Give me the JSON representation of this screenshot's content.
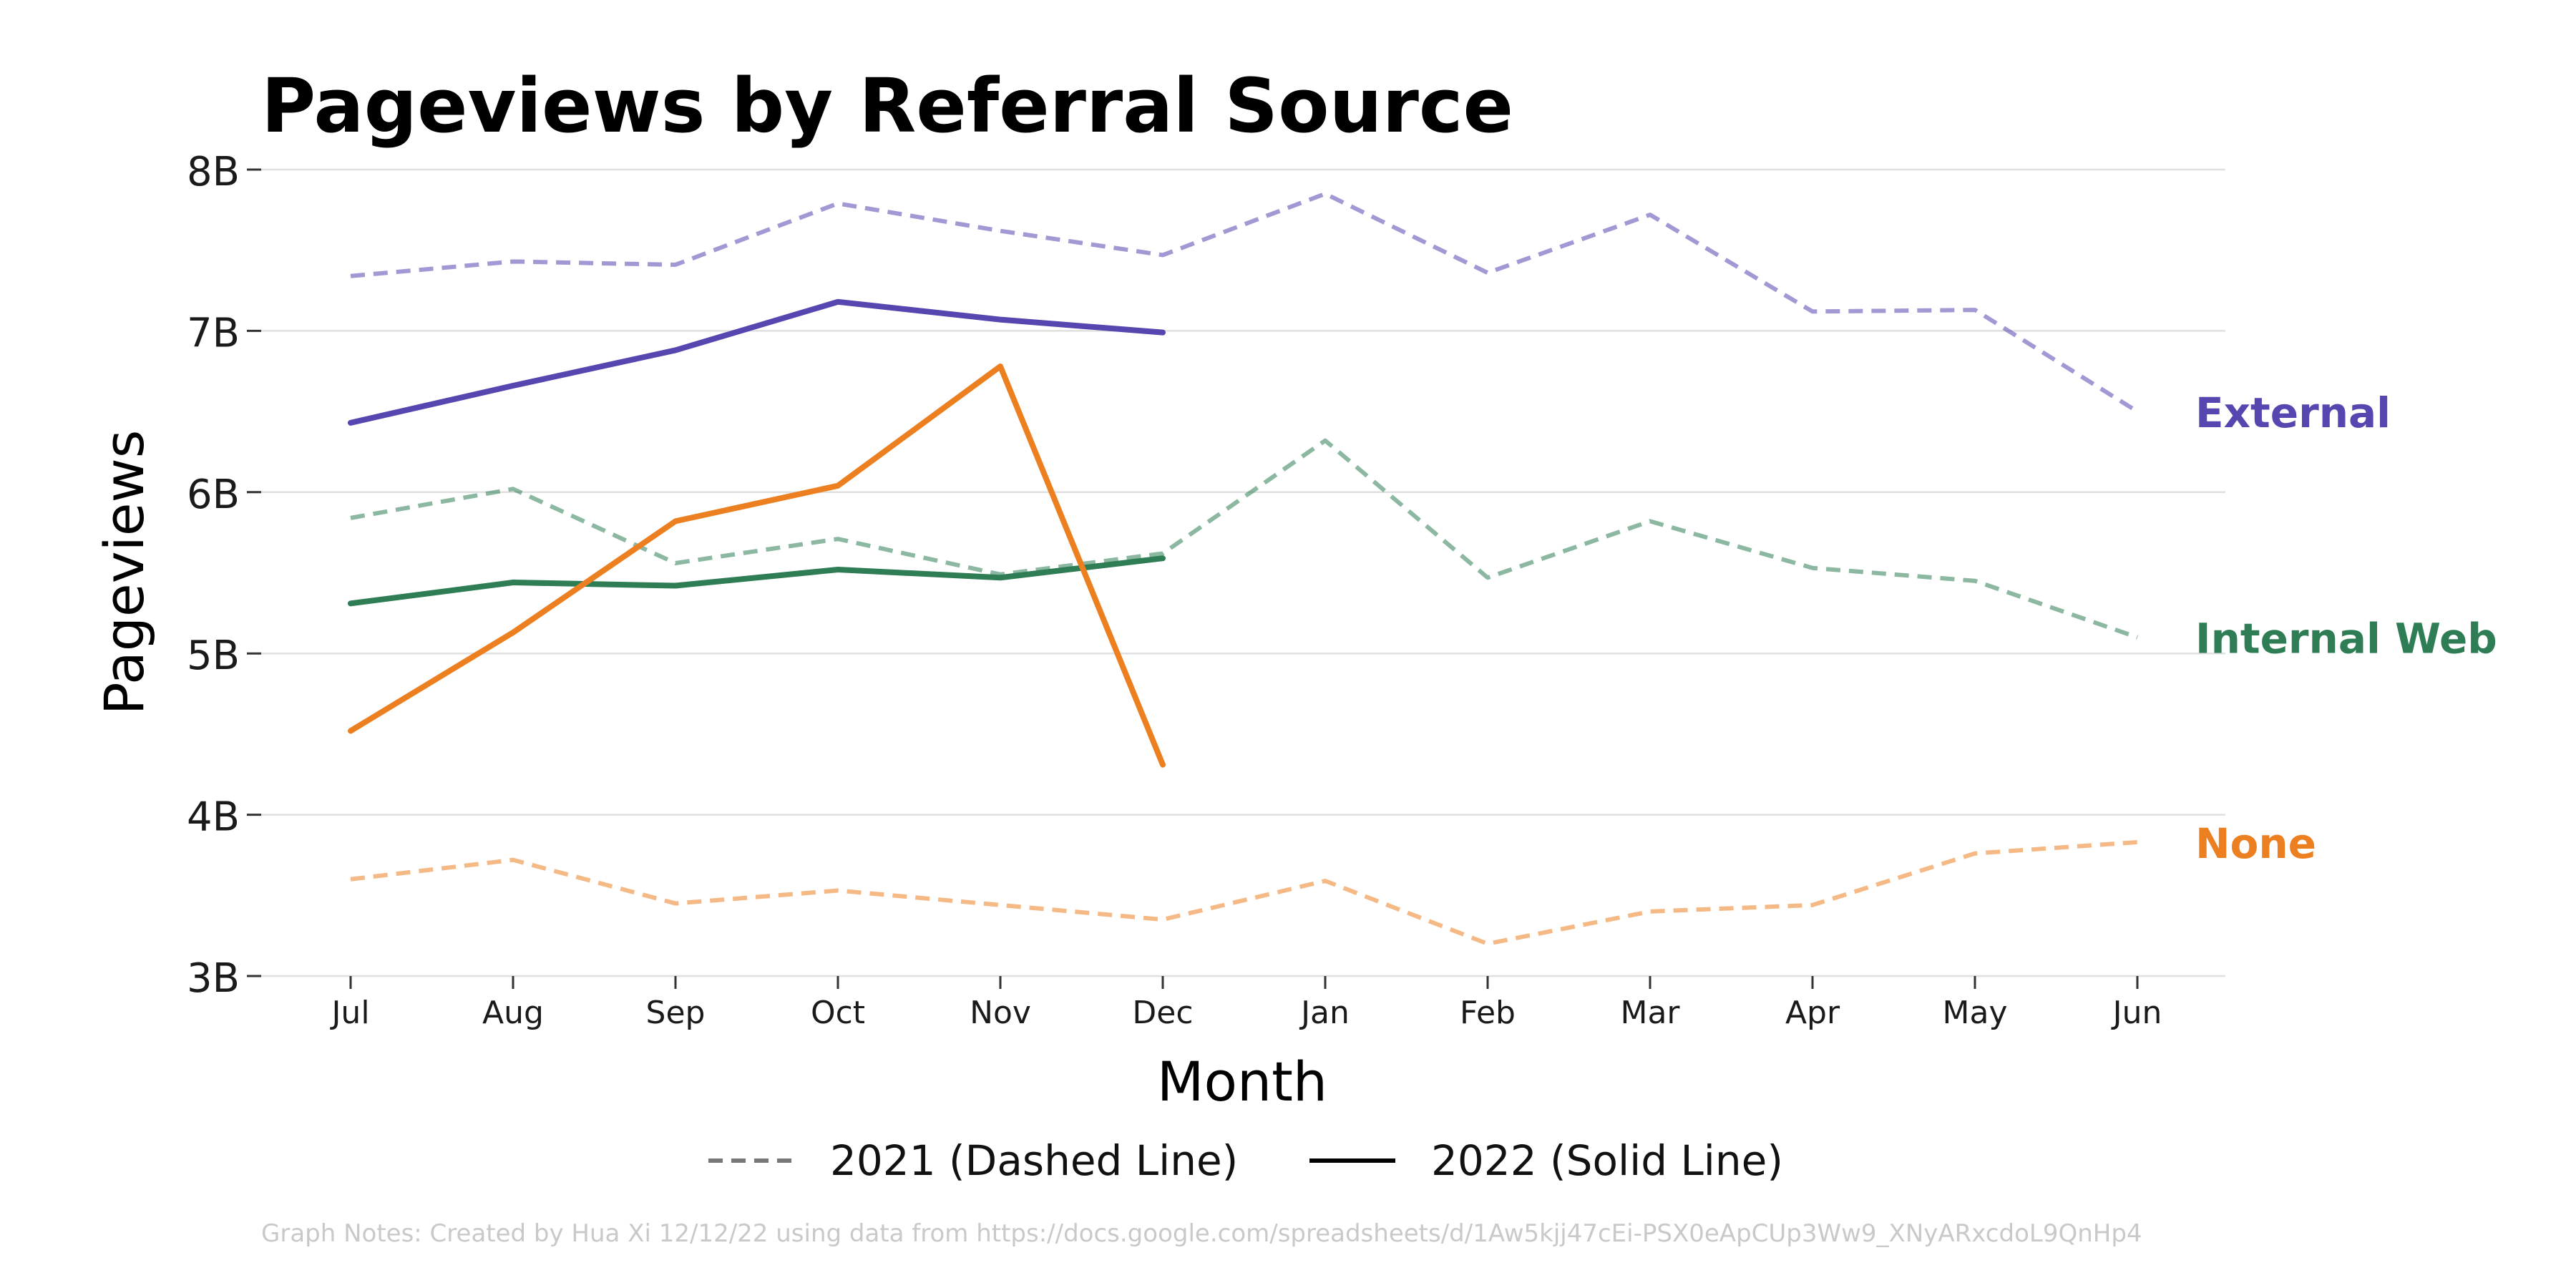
{
  "chart_data": {
    "type": "line",
    "title": "Pageviews by Referral Source",
    "xlabel": "Month",
    "ylabel": "Pageviews",
    "categories": [
      "Jul",
      "Aug",
      "Sep",
      "Oct",
      "Nov",
      "Dec",
      "Jan",
      "Feb",
      "Mar",
      "Apr",
      "May",
      "Jun"
    ],
    "ylim": [
      3,
      8
    ],
    "y_ticks": [
      {
        "value": 3,
        "label": "3B"
      },
      {
        "value": 4,
        "label": "4B"
      },
      {
        "value": 5,
        "label": "5B"
      },
      {
        "value": 6,
        "label": "6B"
      },
      {
        "value": 7,
        "label": "7B"
      },
      {
        "value": 8,
        "label": "8B"
      }
    ],
    "y_unit": "B",
    "grid": "horizontal",
    "legend": {
      "placement": "bottom-center",
      "entries": [
        {
          "label": "2021 (Dashed Line)",
          "style": "dashed",
          "color": "#777777"
        },
        {
          "label": "2022 (Solid Line)",
          "style": "solid",
          "color": "#000000"
        }
      ]
    },
    "series": [
      {
        "label": "External",
        "color": "#5546b0",
        "year_2021": [
          7.34,
          7.43,
          7.41,
          7.79,
          7.62,
          7.47,
          7.85,
          7.36,
          7.72,
          7.12,
          7.13,
          6.5
        ],
        "year_2022": [
          6.43,
          6.66,
          6.88,
          7.18,
          7.07,
          6.99
        ]
      },
      {
        "label": "Internal Web",
        "color": "#2e7d55",
        "year_2021": [
          5.84,
          6.02,
          5.56,
          5.71,
          5.49,
          5.62,
          6.32,
          5.47,
          5.82,
          5.53,
          5.45,
          5.1
        ],
        "year_2022": [
          5.31,
          5.44,
          5.42,
          5.52,
          5.47,
          5.59
        ]
      },
      {
        "label": "None",
        "color": "#ec8020",
        "year_2021": [
          3.6,
          3.72,
          3.45,
          3.53,
          3.44,
          3.35,
          3.59,
          3.2,
          3.4,
          3.44,
          3.76,
          3.83
        ],
        "year_2022": [
          4.52,
          5.13,
          5.82,
          6.04,
          6.78,
          4.31
        ]
      }
    ],
    "note": "Graph Notes: Created by Hua Xi 12/12/22 using data from https://docs.google.com/spreadsheets/d/1Aw5kjj47cEi-PSX0eApCUp3Ww9_XNyARxcdoL9QnHp4"
  }
}
